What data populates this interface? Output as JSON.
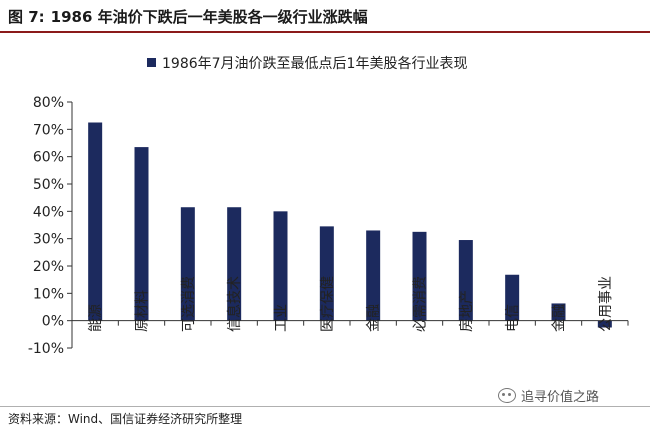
{
  "figure": {
    "label": "图 7:",
    "title": "1986 年油价下跌后一年美股各一级行业涨跌幅",
    "source": "资料来源：Wind、国信证券经济研究所整理",
    "watermark": "追寻价值之路"
  },
  "colors": {
    "bar": "#1c2a5e",
    "rule": "#8b1a1a"
  },
  "chart_data": {
    "type": "bar",
    "title": "",
    "xlabel": "",
    "ylabel": "",
    "legend_position": "top-center",
    "grid": false,
    "series": [
      {
        "name": "1986年7月油价跌至最低点后1年美股各行业表现",
        "values": [
          72.5,
          63.5,
          41.5,
          41.5,
          40.0,
          34.5,
          33.0,
          32.5,
          29.5,
          16.8,
          6.3,
          -2.5
        ]
      }
    ],
    "categories": [
      "能源",
      "原材料",
      "可选消费",
      "信息技术",
      "工业",
      "医疗保健",
      "金融",
      "必需消费",
      "房地产",
      "电信",
      "金融",
      "公用事业"
    ],
    "ylim": [
      -10,
      80
    ],
    "yticks": [
      -10,
      0,
      10,
      20,
      30,
      40,
      50,
      60,
      70,
      80
    ],
    "ytick_labels": [
      "-10%",
      "0%",
      "10%",
      "20%",
      "30%",
      "40%",
      "50%",
      "60%",
      "70%",
      "80%"
    ]
  }
}
